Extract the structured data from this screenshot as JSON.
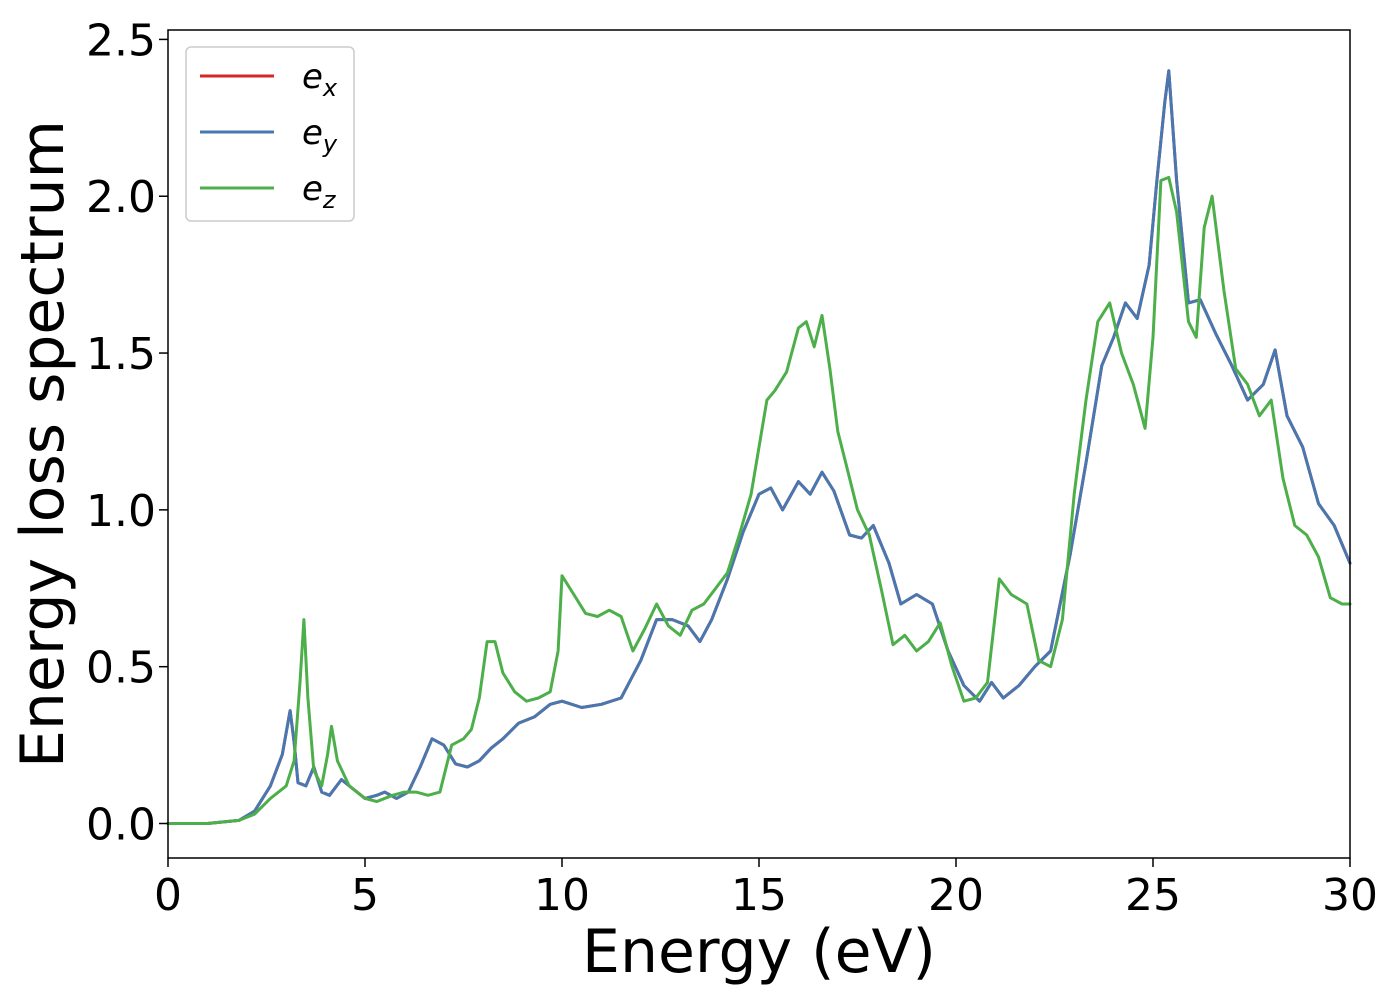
{
  "chart_data": {
    "type": "line",
    "xlabel": "Energy (eV)",
    "ylabel": "Energy loss spectrum",
    "xlim": [
      0,
      30
    ],
    "ylim": [
      -0.11,
      2.53
    ],
    "xticks": [
      0,
      5,
      10,
      15,
      20,
      25,
      30
    ],
    "xtick_labels": [
      "0",
      "5",
      "10",
      "15",
      "20",
      "25",
      "30"
    ],
    "yticks": [
      0,
      0.5,
      1.0,
      1.5,
      2.0,
      2.5
    ],
    "ytick_labels": [
      "0.0",
      "0.5",
      "1.0",
      "1.5",
      "2.0",
      "2.5"
    ],
    "grid": false,
    "legend_position": "top-left",
    "series": [
      {
        "name": "e",
        "subscript": "x",
        "color": "#d62728",
        "x": [
          0,
          1,
          1.8,
          2.2,
          2.6,
          2.9,
          3.1,
          3.2,
          3.3,
          3.5,
          3.7,
          3.9,
          4.1,
          4.4,
          4.7,
          5.0,
          5.3,
          5.5,
          5.8,
          6.1,
          6.4,
          6.7,
          7.0,
          7.3,
          7.6,
          7.9,
          8.2,
          8.5,
          8.9,
          9.3,
          9.7,
          10.0,
          10.5,
          11.0,
          11.5,
          12.0,
          12.4,
          12.8,
          13.2,
          13.5,
          13.8,
          14.2,
          14.6,
          15.0,
          15.3,
          15.6,
          16.0,
          16.3,
          16.6,
          16.9,
          17.3,
          17.6,
          17.9,
          18.3,
          18.6,
          19.0,
          19.4,
          19.8,
          20.2,
          20.6,
          20.9,
          21.2,
          21.6,
          22.0,
          22.4,
          22.9,
          23.3,
          23.7,
          24.0,
          24.3,
          24.6,
          24.9,
          25.1,
          25.3,
          25.4,
          25.6,
          25.9,
          26.2,
          26.6,
          27.0,
          27.4,
          27.8,
          28.1,
          28.4,
          28.8,
          29.2,
          29.6,
          30.0
        ],
        "values": [
          0,
          0,
          0.01,
          0.04,
          0.12,
          0.22,
          0.36,
          0.26,
          0.13,
          0.12,
          0.18,
          0.1,
          0.09,
          0.14,
          0.11,
          0.08,
          0.09,
          0.1,
          0.08,
          0.1,
          0.18,
          0.27,
          0.25,
          0.19,
          0.18,
          0.2,
          0.24,
          0.27,
          0.32,
          0.34,
          0.38,
          0.39,
          0.37,
          0.38,
          0.4,
          0.52,
          0.65,
          0.65,
          0.63,
          0.58,
          0.65,
          0.78,
          0.93,
          1.05,
          1.07,
          1.0,
          1.09,
          1.05,
          1.12,
          1.06,
          0.92,
          0.91,
          0.95,
          0.83,
          0.7,
          0.73,
          0.7,
          0.55,
          0.44,
          0.39,
          0.45,
          0.4,
          0.44,
          0.5,
          0.55,
          0.86,
          1.15,
          1.46,
          1.55,
          1.66,
          1.61,
          1.78,
          2.05,
          2.3,
          2.4,
          2.05,
          1.66,
          1.67,
          1.56,
          1.46,
          1.35,
          1.4,
          1.51,
          1.3,
          1.2,
          1.02,
          0.95,
          0.83
        ]
      },
      {
        "name": "e",
        "subscript": "y",
        "color": "#4878b0",
        "x": [
          0,
          1,
          1.8,
          2.2,
          2.6,
          2.9,
          3.1,
          3.2,
          3.3,
          3.5,
          3.7,
          3.9,
          4.1,
          4.4,
          4.7,
          5.0,
          5.3,
          5.5,
          5.8,
          6.1,
          6.4,
          6.7,
          7.0,
          7.3,
          7.6,
          7.9,
          8.2,
          8.5,
          8.9,
          9.3,
          9.7,
          10.0,
          10.5,
          11.0,
          11.5,
          12.0,
          12.4,
          12.8,
          13.2,
          13.5,
          13.8,
          14.2,
          14.6,
          15.0,
          15.3,
          15.6,
          16.0,
          16.3,
          16.6,
          16.9,
          17.3,
          17.6,
          17.9,
          18.3,
          18.6,
          19.0,
          19.4,
          19.8,
          20.2,
          20.6,
          20.9,
          21.2,
          21.6,
          22.0,
          22.4,
          22.9,
          23.3,
          23.7,
          24.0,
          24.3,
          24.6,
          24.9,
          25.1,
          25.3,
          25.4,
          25.6,
          25.9,
          26.2,
          26.6,
          27.0,
          27.4,
          27.8,
          28.1,
          28.4,
          28.8,
          29.2,
          29.6,
          30.0
        ],
        "values": [
          0,
          0,
          0.01,
          0.04,
          0.12,
          0.22,
          0.36,
          0.26,
          0.13,
          0.12,
          0.18,
          0.1,
          0.09,
          0.14,
          0.11,
          0.08,
          0.09,
          0.1,
          0.08,
          0.1,
          0.18,
          0.27,
          0.25,
          0.19,
          0.18,
          0.2,
          0.24,
          0.27,
          0.32,
          0.34,
          0.38,
          0.39,
          0.37,
          0.38,
          0.4,
          0.52,
          0.65,
          0.65,
          0.63,
          0.58,
          0.65,
          0.78,
          0.93,
          1.05,
          1.07,
          1.0,
          1.09,
          1.05,
          1.12,
          1.06,
          0.92,
          0.91,
          0.95,
          0.83,
          0.7,
          0.73,
          0.7,
          0.55,
          0.44,
          0.39,
          0.45,
          0.4,
          0.44,
          0.5,
          0.55,
          0.86,
          1.15,
          1.46,
          1.55,
          1.66,
          1.61,
          1.78,
          2.05,
          2.3,
          2.4,
          2.05,
          1.66,
          1.67,
          1.56,
          1.46,
          1.35,
          1.4,
          1.51,
          1.3,
          1.2,
          1.02,
          0.95,
          0.83
        ]
      },
      {
        "name": "e",
        "subscript": "z",
        "color": "#4daf4a",
        "x": [
          0,
          1,
          1.8,
          2.2,
          2.6,
          3.0,
          3.2,
          3.35,
          3.45,
          3.55,
          3.7,
          3.9,
          4.05,
          4.15,
          4.3,
          4.6,
          5.0,
          5.3,
          5.7,
          6.0,
          6.3,
          6.6,
          6.9,
          7.2,
          7.5,
          7.7,
          7.9,
          8.1,
          8.3,
          8.5,
          8.8,
          9.1,
          9.4,
          9.7,
          9.9,
          10.0,
          10.3,
          10.6,
          10.9,
          11.2,
          11.5,
          11.8,
          12.1,
          12.4,
          12.7,
          13.0,
          13.3,
          13.6,
          13.9,
          14.2,
          14.5,
          14.8,
          15.0,
          15.2,
          15.4,
          15.7,
          16.0,
          16.2,
          16.4,
          16.6,
          16.8,
          17.0,
          17.2,
          17.5,
          17.8,
          18.1,
          18.4,
          18.7,
          19.0,
          19.3,
          19.6,
          19.9,
          20.2,
          20.5,
          20.8,
          21.1,
          21.4,
          21.8,
          22.1,
          22.4,
          22.7,
          23.0,
          23.3,
          23.6,
          23.9,
          24.2,
          24.5,
          24.8,
          25.0,
          25.2,
          25.4,
          25.6,
          25.9,
          26.1,
          26.3,
          26.5,
          26.8,
          27.1,
          27.4,
          27.7,
          28.0,
          28.3,
          28.6,
          28.9,
          29.2,
          29.5,
          29.8,
          30.0
        ],
        "values": [
          0,
          0,
          0.01,
          0.03,
          0.08,
          0.12,
          0.2,
          0.45,
          0.65,
          0.4,
          0.17,
          0.12,
          0.22,
          0.31,
          0.2,
          0.12,
          0.08,
          0.07,
          0.09,
          0.1,
          0.1,
          0.09,
          0.1,
          0.25,
          0.27,
          0.3,
          0.4,
          0.58,
          0.58,
          0.48,
          0.42,
          0.39,
          0.4,
          0.42,
          0.55,
          0.79,
          0.73,
          0.67,
          0.66,
          0.68,
          0.66,
          0.55,
          0.62,
          0.7,
          0.63,
          0.6,
          0.68,
          0.7,
          0.75,
          0.8,
          0.92,
          1.05,
          1.2,
          1.35,
          1.38,
          1.44,
          1.58,
          1.6,
          1.52,
          1.62,
          1.45,
          1.25,
          1.15,
          1.0,
          0.92,
          0.75,
          0.57,
          0.6,
          0.55,
          0.58,
          0.64,
          0.5,
          0.39,
          0.4,
          0.45,
          0.78,
          0.73,
          0.7,
          0.52,
          0.5,
          0.65,
          1.05,
          1.35,
          1.6,
          1.66,
          1.5,
          1.4,
          1.26,
          1.55,
          2.05,
          2.06,
          1.95,
          1.6,
          1.55,
          1.9,
          2.0,
          1.7,
          1.45,
          1.4,
          1.3,
          1.35,
          1.1,
          0.95,
          0.92,
          0.85,
          0.72,
          0.7,
          0.7
        ]
      }
    ]
  }
}
